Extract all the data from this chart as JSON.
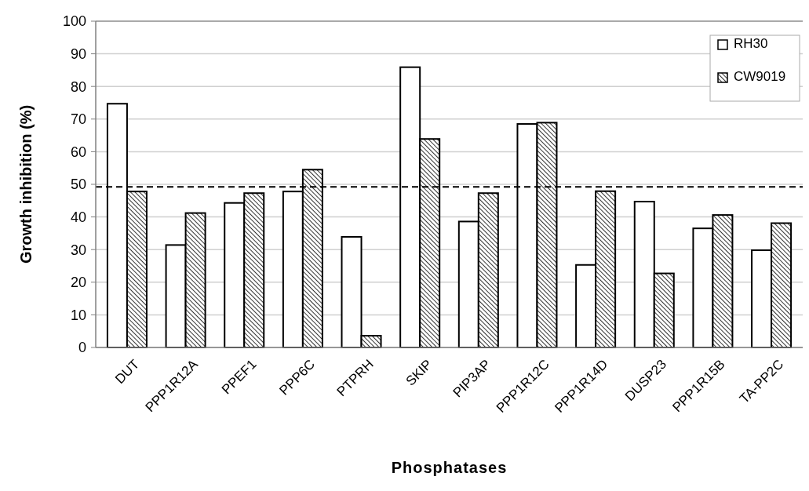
{
  "chart_data": {
    "type": "bar",
    "xlabel": "Phosphatases",
    "ylabel": "Growth inhibition (%)",
    "categories": [
      "DUT",
      "PPP1R12A",
      "PPEF1",
      "PPP6C",
      "PTPRH",
      "SKIP",
      "PIP3AP",
      "PPP1R12C",
      "PPP1R14D",
      "DUSP23",
      "PPP1R15B",
      "TA-PP2C"
    ],
    "series": [
      {
        "name": "RH30",
        "color": "#ffffff",
        "values": [
          74.7,
          31.4,
          44.3,
          47.8,
          33.9,
          85.9,
          38.6,
          68.5,
          25.3,
          44.7,
          36.5,
          29.8
        ]
      },
      {
        "name": "CW9019",
        "color": "#000000",
        "values": [
          47.8,
          41.2,
          47.3,
          54.5,
          3.6,
          63.9,
          47.3,
          68.9,
          47.9,
          22.7,
          40.6,
          38.1
        ]
      }
    ],
    "ylim": [
      0,
      100
    ],
    "yticks": [
      0,
      10,
      20,
      30,
      40,
      50,
      60,
      70,
      80,
      90,
      100
    ],
    "grid": "y",
    "legend": "top right",
    "ref_lines": [
      {
        "axis": "y",
        "value": 49.2,
        "color": "#000000",
        "line_style": "dashed"
      }
    ]
  }
}
